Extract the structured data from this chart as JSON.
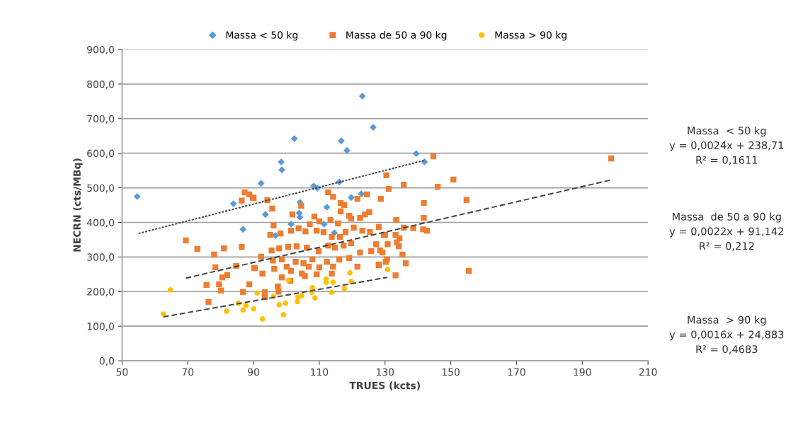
{
  "chart_data": {
    "type": "scatter",
    "xlabel": "TRUES (kcts)",
    "ylabel": "NECRN (cts/MBq)",
    "xlim": [
      50,
      210
    ],
    "xticks": [
      50,
      70,
      90,
      110,
      130,
      150,
      170,
      190,
      210
    ],
    "ylim": [
      0,
      900
    ],
    "yticks": [
      {
        "value": 0,
        "label": "0,0"
      },
      {
        "value": 100,
        "label": "100,0"
      },
      {
        "value": 200,
        "label": "200,0"
      },
      {
        "value": 300,
        "label": "300,0"
      },
      {
        "value": 400,
        "label": "400,0"
      },
      {
        "value": 500,
        "label": "500,0"
      },
      {
        "value": 600,
        "label": "600,0"
      },
      {
        "value": 700,
        "label": "700,0"
      },
      {
        "value": 800,
        "label": "800,0"
      },
      {
        "value": 900,
        "label": "900,0"
      }
    ],
    "grid": "y",
    "legend": "top",
    "series": [
      {
        "name": "Massa < 50 kg",
        "color": "#5b9bd5",
        "marker": "diamond",
        "x": [
          54.6,
          83.9,
          86.8,
          92.3,
          93.6,
          96.7,
          98.4,
          98.6,
          101.4,
          102.4,
          103.9,
          104.1,
          104.1,
          108.3,
          109.4,
          111.5,
          112.3,
          114.6,
          116.1,
          116.7,
          118.4,
          119.7,
          122.8,
          123.1,
          126.4,
          139.5,
          142.0
        ],
        "values": [
          475,
          454,
          380,
          513,
          423,
          362,
          575,
          552,
          395,
          642,
          427,
          415,
          458,
          505,
          499,
          395,
          444,
          370,
          517,
          636,
          608,
          472,
          483,
          765,
          675,
          599,
          575
        ]
      },
      {
        "name": "Massa de 50 a 90 kg",
        "color": "#ed7d31",
        "marker": "square",
        "x": [
          69.4,
          72.9,
          78.0,
          81.0,
          86.4,
          78.4,
          84.7,
          90.4,
          80.5,
          82.0,
          75.7,
          79.5,
          80.1,
          86.8,
          88.7,
          76.3,
          87.3,
          88.7,
          89.8,
          86.4,
          90.0,
          94.2,
          95.7,
          112.7,
          114.2,
          116.5,
          117.6,
          116.5,
          119.1,
          119.7,
          121.6,
          124.5,
          128.7,
          130.4,
          104.5,
          101.8,
          108.5,
          110.0,
          113.4,
          115.7,
          122.4,
          123.9,
          125.2,
          96.1,
          95.1,
          98.2,
          101.4,
          103.7,
          105.8,
          107.1,
          109.2,
          111.3,
          113.8,
          116.3,
          118.0,
          120.5,
          123.1,
          125.4,
          128.1,
          129.6,
          92.3,
          95.5,
          97.8,
          100.5,
          103.1,
          106.2,
          109.8,
          112.7,
          114.8,
          117.4,
          119.7,
          122.4,
          125.8,
          127.3,
          129.2,
          90.2,
          92.7,
          95.9,
          96.3,
          98.6,
          98.6,
          100.1,
          101.4,
          102.8,
          105.2,
          104.7,
          106.8,
          107.9,
          110.0,
          109.2,
          112.3,
          114.2,
          116.1,
          113.8,
          119.1,
          121.6,
          128.1,
          130.2,
          130.8,
          101.2,
          97.4,
          97.6,
          93.4,
          93.4,
          105.6,
          144.7,
          150.8,
          135.7,
          131.1,
          146.0,
          141.8,
          154.8,
          133.4,
          141.8,
          135.7,
          138.6,
          141.6,
          142.8,
          130.0,
          133.2,
          134.4,
          133.6,
          134.2,
          128.5,
          135.3,
          130.6,
          128.1,
          136.3,
          133.2,
          155.5,
          198.8
        ],
        "values": [
          348,
          323,
          307,
          325,
          329,
          270,
          274,
          268,
          241,
          248,
          219,
          221,
          203,
          199,
          221,
          170,
          487,
          481,
          472,
          463,
          470,
          464,
          440,
          487,
          474,
          456,
          450,
          432,
          419,
          411,
          468,
          481,
          468,
          536,
          448,
          423,
          417,
          403,
          407,
          397,
          413,
          423,
          430,
          391,
          364,
          368,
          376,
          383,
          374,
          395,
          376,
          372,
          358,
          358,
          372,
          385,
          376,
          372,
          387,
          364,
          301,
          319,
          325,
          329,
          331,
          327,
          317,
          333,
          327,
          333,
          340,
          313,
          317,
          337,
          313,
          268,
          252,
          290,
          266,
          293,
          241,
          272,
          260,
          286,
          282,
          252,
          272,
          293,
          270,
          250,
          286,
          272,
          293,
          252,
          297,
          272,
          276,
          286,
          337,
          231,
          215,
          200,
          198,
          184,
          245,
          591,
          524,
          509,
          497,
          503,
          456,
          465,
          407,
          413,
          385,
          383,
          380,
          376,
          364,
          364,
          354,
          342,
          331,
          319,
          307,
          293,
          278,
          282,
          247,
          260,
          585
        ]
      },
      {
        "name": "Massa > 90 kg",
        "color": "#ffc000",
        "marker": "circle",
        "x": [
          64.7,
          62.6,
          81.8,
          85.4,
          86.8,
          87.7,
          90.0,
          91.1,
          92.7,
          96.1,
          97.8,
          99.7,
          99.1,
          100.7,
          103.5,
          103.3,
          104.7,
          107.9,
          107.7,
          108.7,
          112.1,
          112.1,
          114.2,
          113.8,
          117.6,
          119.3,
          119.7,
          130.8
        ],
        "values": [
          205,
          135,
          143,
          166,
          147,
          160,
          150,
          196,
          121,
          186,
          162,
          166,
          133,
          233,
          184,
          171,
          188,
          211,
          198,
          182,
          237,
          227,
          227,
          198,
          209,
          254,
          229,
          264
        ]
      },
      {
        "type": "line",
        "color": "#404040",
        "line_style": "dotted",
        "x": [
          55,
          141.8
        ],
        "values": [
          368,
          579
        ]
      },
      {
        "type": "line",
        "color": "#404040",
        "line_style": "dashed",
        "x": [
          69.4,
          198.4
        ],
        "values": [
          239,
          522
        ]
      },
      {
        "type": "line",
        "color": "#404040",
        "line_style": "dashed",
        "x": [
          62.6,
          130.6
        ],
        "values": [
          127,
          241
        ]
      }
    ],
    "annotations": [
      "Massa  < 50 kg\ny = 0,0024x + 238,71\nR² = 0,1611",
      "Massa  de 50 a 90 kg\ny = 0,0022x + 91,142\nR² = 0,212",
      "Massa  > 90 kg\ny = 0,0016x + 24,883\nR² = 0,4683"
    ]
  }
}
